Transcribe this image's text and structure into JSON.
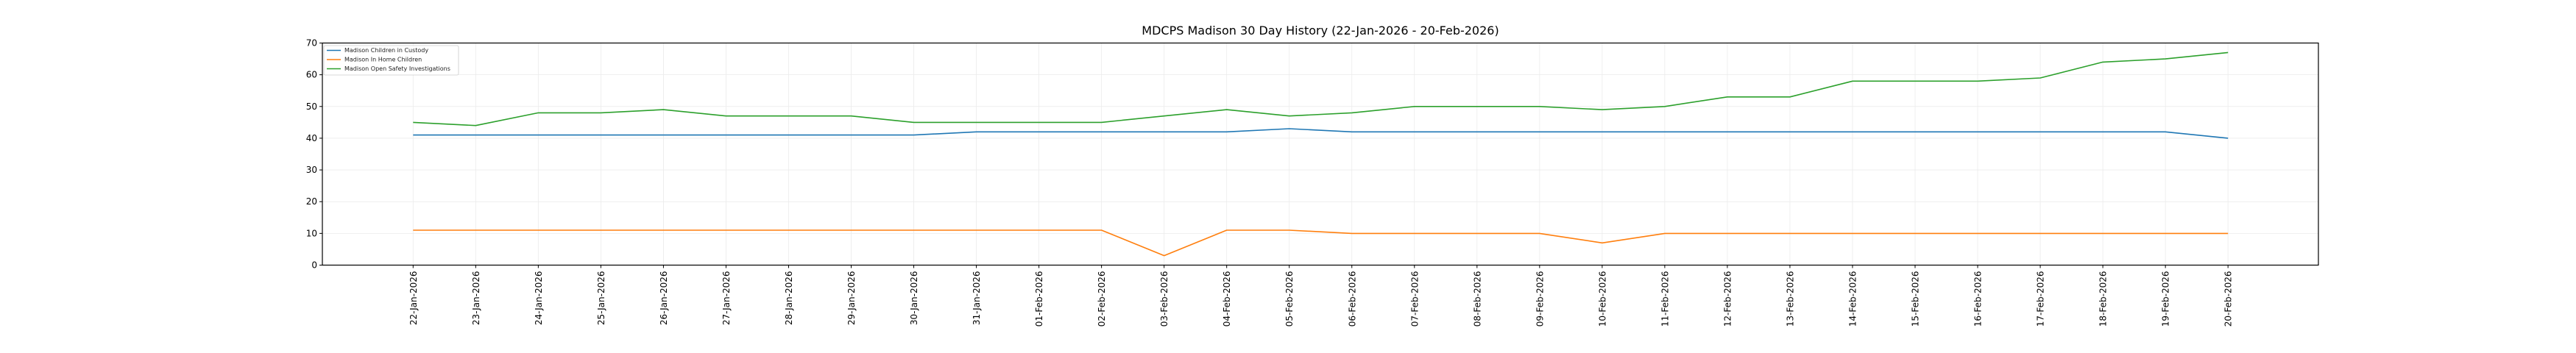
{
  "chart_data": {
    "type": "line",
    "title": "MDCPS Madison 30 Day History (22-Jan-2026 - 20-Feb-2026)",
    "xlabel": "",
    "ylabel": "",
    "ylim": [
      0,
      70
    ],
    "yticks": [
      "0",
      "10",
      "20",
      "30",
      "40",
      "50",
      "60",
      "70"
    ],
    "grid": true,
    "legend_position": "top-left",
    "x": [
      "22-Jan-2026",
      "23-Jan-2026",
      "24-Jan-2026",
      "25-Jan-2026",
      "26-Jan-2026",
      "27-Jan-2026",
      "28-Jan-2026",
      "29-Jan-2026",
      "30-Jan-2026",
      "31-Jan-2026",
      "01-Feb-2026",
      "02-Feb-2026",
      "03-Feb-2026",
      "04-Feb-2026",
      "05-Feb-2026",
      "06-Feb-2026",
      "07-Feb-2026",
      "08-Feb-2026",
      "09-Feb-2026",
      "10-Feb-2026",
      "11-Feb-2026",
      "12-Feb-2026",
      "13-Feb-2026",
      "14-Feb-2026",
      "15-Feb-2026",
      "16-Feb-2026",
      "17-Feb-2026",
      "18-Feb-2026",
      "19-Feb-2026",
      "20-Feb-2026"
    ],
    "series": [
      {
        "name": "Madison Children in Custody",
        "color": "#1f77b4",
        "values": [
          41,
          41,
          41,
          41,
          41,
          41,
          41,
          41,
          41,
          42,
          42,
          42,
          42,
          42,
          43,
          42,
          42,
          42,
          42,
          42,
          42,
          42,
          42,
          42,
          42,
          42,
          42,
          42,
          42,
          40
        ]
      },
      {
        "name": "Madison In Home Children",
        "color": "#ff7f0e",
        "values": [
          11,
          11,
          11,
          11,
          11,
          11,
          11,
          11,
          11,
          11,
          11,
          11,
          3,
          11,
          11,
          10,
          10,
          10,
          10,
          7,
          10,
          10,
          10,
          10,
          10,
          10,
          10,
          10,
          10,
          10
        ]
      },
      {
        "name": "Madison Open Safety Investigations",
        "color": "#2ca02c",
        "values": [
          45,
          44,
          48,
          48,
          49,
          47,
          47,
          47,
          45,
          45,
          45,
          45,
          47,
          49,
          47,
          48,
          50,
          50,
          50,
          49,
          50,
          53,
          53,
          58,
          58,
          58,
          59,
          64,
          65,
          67
        ]
      }
    ]
  }
}
